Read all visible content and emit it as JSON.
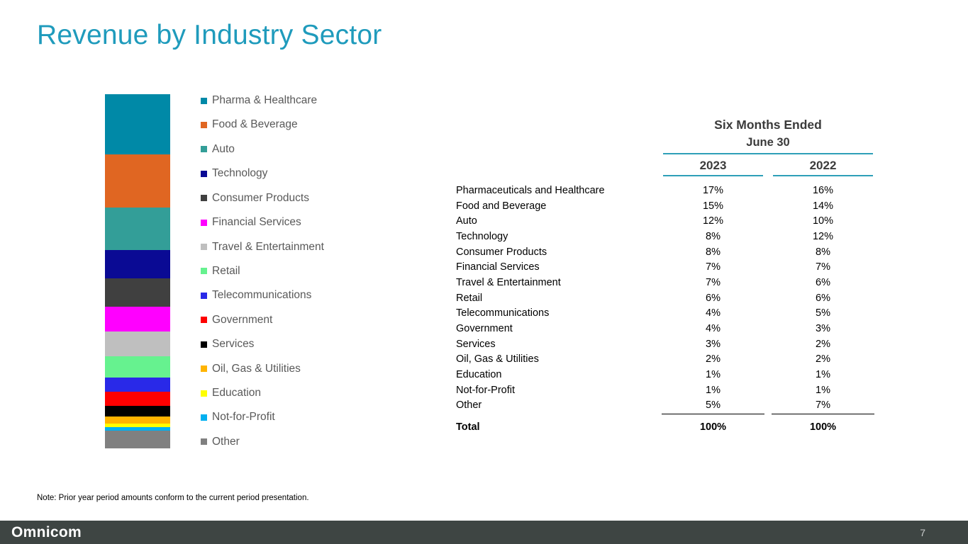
{
  "title": "Revenue by Industry Sector",
  "chart_data": {
    "type": "bar",
    "subtype": "single-column-stacked",
    "title": "Revenue by Industry Sector",
    "legend_position": "right",
    "categories": [
      "Pharma & Healthcare",
      "Food & Beverage",
      "Auto",
      "Technology",
      "Consumer Products",
      "Financial Services",
      "Travel & Entertainment",
      "Retail",
      "Telecommunications",
      "Government",
      "Services",
      "Oil, Gas & Utilities",
      "Education",
      "Not-for-Profit",
      "Other"
    ],
    "values": [
      17,
      15,
      12,
      8,
      8,
      7,
      7,
      6,
      4,
      4,
      3,
      2,
      1,
      1,
      5
    ],
    "colors": [
      "#0089A7",
      "#E06622",
      "#339E98",
      "#0A0A94",
      "#404040",
      "#FF00FF",
      "#BFBFBF",
      "#66F28F",
      "#2929E8",
      "#FE0000",
      "#000000",
      "#FFB400",
      "#FFFF00",
      "#00B0F0",
      "#808080"
    ],
    "unit": "%"
  },
  "table": {
    "header_line1": "Six Months Ended",
    "header_line2": "June 30",
    "columns": [
      "2023",
      "2022"
    ],
    "rows": [
      {
        "label": "Pharmaceuticals and Healthcare",
        "values": [
          "17%",
          "16%"
        ]
      },
      {
        "label": "Food and Beverage",
        "values": [
          "15%",
          "14%"
        ]
      },
      {
        "label": "Auto",
        "values": [
          "12%",
          "10%"
        ]
      },
      {
        "label": "Technology",
        "values": [
          "8%",
          "12%"
        ]
      },
      {
        "label": "Consumer Products",
        "values": [
          "8%",
          "8%"
        ]
      },
      {
        "label": "Financial Services",
        "values": [
          "7%",
          "7%"
        ]
      },
      {
        "label": "Travel & Entertainment",
        "values": [
          "7%",
          "6%"
        ]
      },
      {
        "label": "Retail",
        "values": [
          "6%",
          "6%"
        ]
      },
      {
        "label": "Telecommunications",
        "values": [
          "4%",
          "5%"
        ]
      },
      {
        "label": "Government",
        "values": [
          "4%",
          "3%"
        ]
      },
      {
        "label": "Services",
        "values": [
          "3%",
          "2%"
        ]
      },
      {
        "label": "Oil, Gas & Utilities",
        "values": [
          "2%",
          "2%"
        ]
      },
      {
        "label": "Education",
        "values": [
          "1%",
          "1%"
        ]
      },
      {
        "label": "Not-for-Profit",
        "values": [
          "1%",
          "1%"
        ]
      },
      {
        "label": "Other",
        "values": [
          "5%",
          "7%"
        ]
      }
    ],
    "total": {
      "label": "Total",
      "values": [
        "100%",
        "100%"
      ]
    }
  },
  "note": "Note:  Prior year period amounts conform to the current period presentation.",
  "footer": {
    "logo": "Omnicom",
    "page": "7"
  },
  "accent_color": "#2E9FB8"
}
